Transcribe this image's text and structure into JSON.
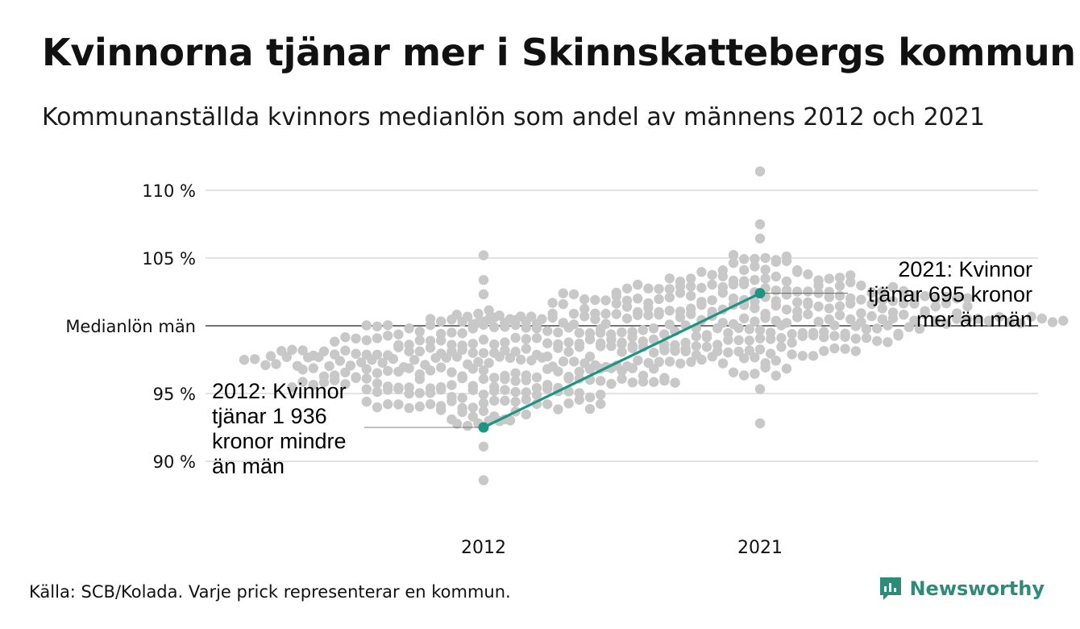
{
  "title": "Kvinnorna tjänar mer i Skinnskattebergs kommun",
  "subtitle": "Kommunanställda kvinnors medianlön som andel av männens 2012 och 2021",
  "source": "Källa: SCB/Kolada. Varje prick representerar en kommun.",
  "brand": {
    "name": "Newsworthy",
    "color": "#2e8b7a"
  },
  "chart_data": {
    "type": "scatter",
    "subtype": "beeswarm-with-highlight-line",
    "categories": [
      "2012",
      "2021"
    ],
    "y_axis": {
      "ylim": [
        86.5,
        111.5
      ],
      "ticks": [
        {
          "value": 90,
          "label": "90 %"
        },
        {
          "value": 95,
          "label": "95 %"
        },
        {
          "value": 100,
          "label": "Medianlön män"
        },
        {
          "value": 105,
          "label": "105 %"
        },
        {
          "value": 110,
          "label": "110 %"
        }
      ]
    },
    "reference_line": {
      "value": 100,
      "label": "Medianlön män"
    },
    "dot_color": "#c8c8c8",
    "highlight_color": "#1e9484",
    "swarms": [
      {
        "category": "2012",
        "center": 97.0,
        "spread": 2.3,
        "min": 88.6,
        "max": 105.2,
        "count": 290
      },
      {
        "category": "2021",
        "center": 101.0,
        "spread": 2.0,
        "min": 92.8,
        "max": 111.4,
        "count": 290
      }
    ],
    "highlight": {
      "name": "Skinnskatteberg",
      "points": [
        {
          "x": "2012",
          "y": 92.5
        },
        {
          "x": "2021",
          "y": 102.4
        }
      ]
    },
    "annotations": [
      {
        "x": "2012",
        "y": 92.5,
        "lines": [
          "2012: Kvinnor",
          "tjänar 1 936",
          "kronor mindre",
          "än män"
        ]
      },
      {
        "x": "2021",
        "y": 102.4,
        "lines": [
          "2021: Kvinnor",
          "tjänar 695 kronor",
          "mer än män"
        ]
      }
    ],
    "grid": true
  }
}
